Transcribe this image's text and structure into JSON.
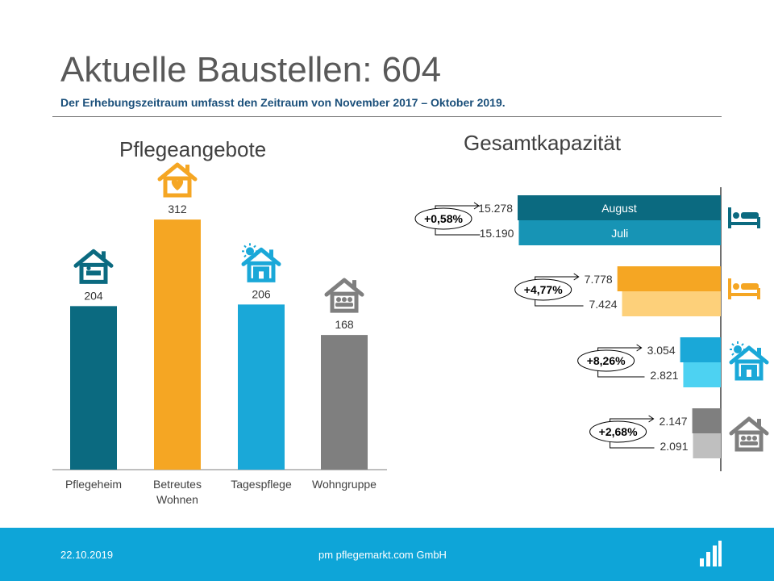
{
  "header": {
    "title": "Aktuelle Baustellen: 604",
    "subtitle": "Der Erhebungszeitraum umfasst den Zeitraum  von November 2017 – Oktober 2019."
  },
  "left_chart_title": "Pflegeangebote",
  "right_chart_title": "Gesamtkapazität",
  "footer": {
    "date": "22.10.2019",
    "company": "pm pflegemarkt.com GmbH"
  },
  "chart_data": [
    {
      "type": "bar",
      "title": "Pflegeangebote",
      "categories": [
        "Pflegeheim",
        "Betreutes Wohnen",
        "Tagespflege",
        "Wohngruppe"
      ],
      "category_lines": [
        [
          "Pflegeheim"
        ],
        [
          "Betreutes",
          "Wohnen"
        ],
        [
          "Tagespflege"
        ],
        [
          "Wohngruppe"
        ]
      ],
      "values": [
        204,
        312,
        206,
        168
      ],
      "value_labels": [
        "204",
        "312",
        "206",
        "168"
      ],
      "colors": [
        "#0b6a80",
        "#f5a623",
        "#1aa8d8",
        "#7f7f7f"
      ],
      "icons": [
        "nursing-home-icon",
        "assisted-living-heart-house-icon",
        "day-care-sun-house-icon",
        "shared-flat-house-icon"
      ]
    },
    {
      "type": "bar",
      "orientation": "horizontal",
      "title": "Gesamtkapazität",
      "series": [
        {
          "name": "August",
          "values": [
            15278,
            7778,
            3054,
            2147
          ],
          "labels": [
            "15.278",
            "7.778",
            "3.054",
            "2.147"
          ]
        },
        {
          "name": "Juli",
          "values": [
            15190,
            7424,
            2821,
            2091
          ],
          "labels": [
            "15.190",
            "7.424",
            "2.821",
            "2.091"
          ]
        }
      ],
      "changes": [
        "+0,58%",
        "+4,77%",
        "+8,26%",
        "+2,68%"
      ],
      "colors": [
        [
          "#0b6a80",
          "#1794b5"
        ],
        [
          "#f5a623",
          "#fdd07a"
        ],
        [
          "#1aa8d8",
          "#4dd2f2"
        ],
        [
          "#7f7f7f",
          "#bfbfbf"
        ]
      ],
      "icons": [
        "bed-icon",
        "bed-icon",
        "day-care-sun-house-icon",
        "shared-flat-house-icon"
      ]
    }
  ]
}
